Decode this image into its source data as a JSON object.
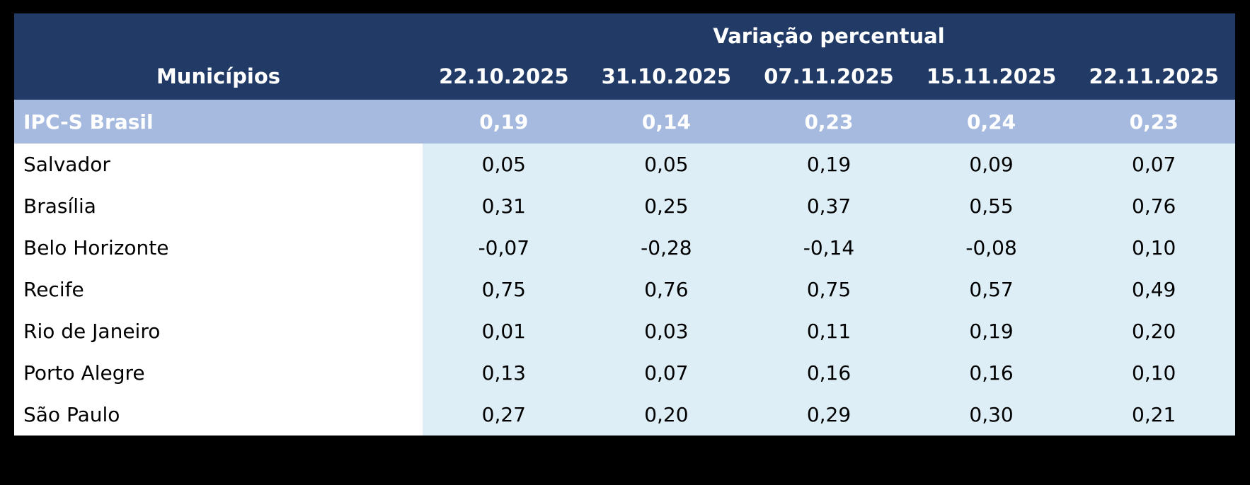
{
  "chart_data": {
    "type": "table",
    "title": "Variação percentual",
    "row_header_label": "Municípios",
    "columns": [
      "22.10.2025",
      "31.10.2025",
      "07.11.2025",
      "15.11.2025",
      "22.11.2025"
    ],
    "summary_row": {
      "label": "IPC-S Brasil",
      "values": [
        "0,19",
        "0,14",
        "0,23",
        "0,24",
        "0,23"
      ]
    },
    "rows": [
      {
        "label": "Salvador",
        "values": [
          "0,05",
          "0,05",
          "0,19",
          "0,09",
          "0,07"
        ]
      },
      {
        "label": "Brasília",
        "values": [
          "0,31",
          "0,25",
          "0,37",
          "0,55",
          "0,76"
        ]
      },
      {
        "label": "Belo Horizonte",
        "values": [
          "-0,07",
          "-0,28",
          "-0,14",
          "-0,08",
          "0,10"
        ]
      },
      {
        "label": "Recife",
        "values": [
          "0,75",
          "0,76",
          "0,75",
          "0,57",
          "0,49"
        ]
      },
      {
        "label": "Rio de Janeiro",
        "values": [
          "0,01",
          "0,03",
          "0,11",
          "0,19",
          "0,20"
        ]
      },
      {
        "label": "Porto Alegre",
        "values": [
          "0,13",
          "0,07",
          "0,16",
          "0,16",
          "0,10"
        ]
      },
      {
        "label": "São Paulo",
        "values": [
          "0,27",
          "0,20",
          "0,29",
          "0,30",
          "0,21"
        ]
      }
    ],
    "layout": {
      "legend": "none",
      "grid": "off",
      "title_position": "spans-value-columns"
    },
    "colors": {
      "page_background": "#000000",
      "header_background": "#213A66",
      "header_text": "#FFFFFF",
      "summary_row_background": "#A6BAE0",
      "summary_row_text": "#FFFFFF",
      "value_cell_background": "#DEEEF6",
      "label_cell_background": "#FFFFFF",
      "body_text": "#000000"
    }
  }
}
